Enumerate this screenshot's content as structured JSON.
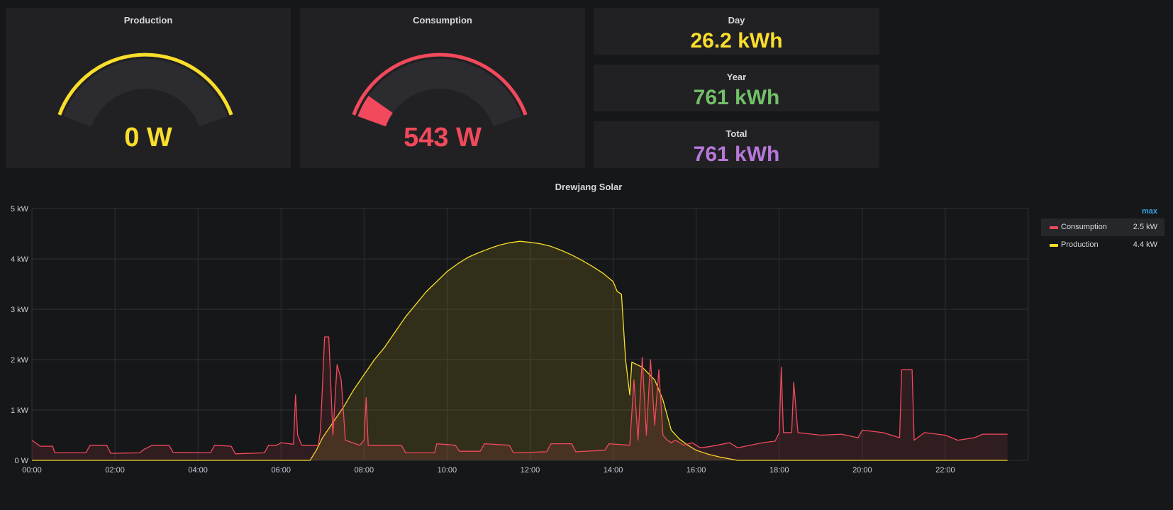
{
  "colors": {
    "production": "#fade2a",
    "consumption": "#f2495c",
    "year": "#73bf69",
    "total": "#b877d9",
    "gauge_track": "#2c2c30",
    "grid": "#2f3034",
    "axis_text": "#c7d0d9"
  },
  "gauges": {
    "production": {
      "title": "Production",
      "value": "0 W",
      "fraction": 0.0
    },
    "consumption": {
      "title": "Consumption",
      "value": "543 W",
      "fraction": 0.1086
    }
  },
  "stats": {
    "day": {
      "title": "Day",
      "value": "26.2 kWh"
    },
    "year": {
      "title": "Year",
      "value": "761 kWh"
    },
    "total": {
      "title": "Total",
      "value": "761 kWh"
    }
  },
  "graph": {
    "title": "Drewjang Solar",
    "legend": {
      "header": "max",
      "items": [
        {
          "name": "Consumption",
          "max": "2.5 kW"
        },
        {
          "name": "Production",
          "max": "4.4 kW"
        }
      ]
    }
  },
  "chart_data": {
    "type": "area",
    "title": "Drewjang Solar",
    "xlabel": "",
    "ylabel": "",
    "x_ticks": [
      "00:00",
      "02:00",
      "04:00",
      "06:00",
      "08:00",
      "10:00",
      "12:00",
      "14:00",
      "16:00",
      "18:00",
      "20:00",
      "22:00"
    ],
    "y_ticks": [
      "0 W",
      "1 kW",
      "2 kW",
      "3 kW",
      "4 kW",
      "5 kW"
    ],
    "xlim": [
      0,
      24
    ],
    "ylim": [
      0,
      5
    ],
    "legend_position": "right",
    "grid": true,
    "series": [
      {
        "name": "Production",
        "unit": "kW",
        "points": [
          [
            0.0,
            0.0
          ],
          [
            6.7,
            0.0
          ],
          [
            6.85,
            0.2
          ],
          [
            7.0,
            0.45
          ],
          [
            7.25,
            0.75
          ],
          [
            7.5,
            1.05
          ],
          [
            7.75,
            1.4
          ],
          [
            8.0,
            1.7
          ],
          [
            8.25,
            2.0
          ],
          [
            8.5,
            2.25
          ],
          [
            8.75,
            2.55
          ],
          [
            9.0,
            2.85
          ],
          [
            9.25,
            3.1
          ],
          [
            9.5,
            3.35
          ],
          [
            9.75,
            3.55
          ],
          [
            10.0,
            3.75
          ],
          [
            10.25,
            3.9
          ],
          [
            10.5,
            4.03
          ],
          [
            10.75,
            4.12
          ],
          [
            11.0,
            4.2
          ],
          [
            11.25,
            4.27
          ],
          [
            11.5,
            4.32
          ],
          [
            11.75,
            4.35
          ],
          [
            12.0,
            4.33
          ],
          [
            12.25,
            4.3
          ],
          [
            12.5,
            4.25
          ],
          [
            12.75,
            4.17
          ],
          [
            13.0,
            4.08
          ],
          [
            13.25,
            3.97
          ],
          [
            13.5,
            3.85
          ],
          [
            13.75,
            3.72
          ],
          [
            14.0,
            3.55
          ],
          [
            14.1,
            3.35
          ],
          [
            14.2,
            3.3
          ],
          [
            14.3,
            2.0
          ],
          [
            14.4,
            1.3
          ],
          [
            14.45,
            1.95
          ],
          [
            14.7,
            1.85
          ],
          [
            15.0,
            1.6
          ],
          [
            15.2,
            1.2
          ],
          [
            15.4,
            0.6
          ],
          [
            15.6,
            0.42
          ],
          [
            15.8,
            0.3
          ],
          [
            16.0,
            0.2
          ],
          [
            16.3,
            0.12
          ],
          [
            16.6,
            0.06
          ],
          [
            17.0,
            0.0
          ],
          [
            23.5,
            0.0
          ]
        ]
      },
      {
        "name": "Consumption",
        "unit": "kW",
        "points": [
          [
            0.0,
            0.4
          ],
          [
            0.2,
            0.28
          ],
          [
            0.5,
            0.28
          ],
          [
            0.55,
            0.15
          ],
          [
            1.3,
            0.15
          ],
          [
            1.4,
            0.3
          ],
          [
            1.8,
            0.3
          ],
          [
            1.9,
            0.14
          ],
          [
            2.6,
            0.15
          ],
          [
            2.7,
            0.22
          ],
          [
            2.9,
            0.3
          ],
          [
            3.3,
            0.3
          ],
          [
            3.4,
            0.16
          ],
          [
            4.3,
            0.15
          ],
          [
            4.4,
            0.3
          ],
          [
            4.8,
            0.28
          ],
          [
            4.9,
            0.13
          ],
          [
            5.6,
            0.15
          ],
          [
            5.7,
            0.3
          ],
          [
            5.9,
            0.3
          ],
          [
            6.0,
            0.35
          ],
          [
            6.3,
            0.32
          ],
          [
            6.35,
            1.3
          ],
          [
            6.4,
            0.5
          ],
          [
            6.5,
            0.3
          ],
          [
            6.9,
            0.3
          ],
          [
            6.95,
            0.6
          ],
          [
            7.05,
            2.45
          ],
          [
            7.15,
            2.45
          ],
          [
            7.25,
            0.5
          ],
          [
            7.35,
            1.9
          ],
          [
            7.45,
            1.6
          ],
          [
            7.55,
            0.4
          ],
          [
            7.9,
            0.3
          ],
          [
            8.0,
            0.4
          ],
          [
            8.05,
            1.25
          ],
          [
            8.1,
            0.3
          ],
          [
            8.5,
            0.3
          ],
          [
            8.9,
            0.3
          ],
          [
            9.0,
            0.15
          ],
          [
            9.7,
            0.15
          ],
          [
            9.75,
            0.33
          ],
          [
            10.2,
            0.3
          ],
          [
            10.3,
            0.18
          ],
          [
            10.8,
            0.18
          ],
          [
            10.9,
            0.33
          ],
          [
            11.5,
            0.3
          ],
          [
            11.6,
            0.15
          ],
          [
            12.4,
            0.17
          ],
          [
            12.5,
            0.33
          ],
          [
            13.0,
            0.33
          ],
          [
            13.1,
            0.17
          ],
          [
            13.8,
            0.2
          ],
          [
            13.9,
            0.33
          ],
          [
            14.4,
            0.3
          ],
          [
            14.5,
            1.6
          ],
          [
            14.6,
            0.4
          ],
          [
            14.7,
            2.05
          ],
          [
            14.8,
            0.5
          ],
          [
            14.9,
            2.0
          ],
          [
            15.0,
            0.7
          ],
          [
            15.1,
            1.8
          ],
          [
            15.2,
            0.5
          ],
          [
            15.3,
            0.4
          ],
          [
            15.4,
            0.35
          ],
          [
            15.5,
            0.4
          ],
          [
            15.7,
            0.3
          ],
          [
            15.9,
            0.35
          ],
          [
            16.1,
            0.25
          ],
          [
            16.3,
            0.27
          ],
          [
            16.5,
            0.3
          ],
          [
            16.8,
            0.35
          ],
          [
            17.0,
            0.25
          ],
          [
            17.3,
            0.3
          ],
          [
            17.6,
            0.35
          ],
          [
            17.9,
            0.38
          ],
          [
            18.0,
            0.55
          ],
          [
            18.05,
            1.85
          ],
          [
            18.1,
            0.55
          ],
          [
            18.3,
            0.55
          ],
          [
            18.35,
            1.55
          ],
          [
            18.45,
            0.55
          ],
          [
            19.0,
            0.5
          ],
          [
            19.5,
            0.52
          ],
          [
            19.9,
            0.45
          ],
          [
            20.0,
            0.6
          ],
          [
            20.5,
            0.55
          ],
          [
            20.9,
            0.45
          ],
          [
            20.95,
            1.8
          ],
          [
            21.2,
            1.8
          ],
          [
            21.25,
            0.4
          ],
          [
            21.5,
            0.55
          ],
          [
            22.0,
            0.5
          ],
          [
            22.3,
            0.4
          ],
          [
            22.7,
            0.45
          ],
          [
            22.9,
            0.52
          ],
          [
            23.5,
            0.52
          ]
        ]
      }
    ]
  }
}
